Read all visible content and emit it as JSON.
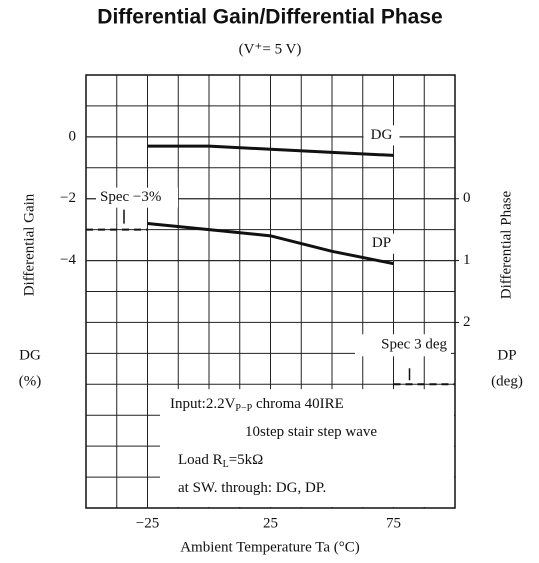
{
  "chart_data": {
    "type": "line",
    "title": "Differential Gain/Differential Phase",
    "subtitle": "(V⁺= 5 V)",
    "x_label": "Ambient Temperature Ta (°C)",
    "y_label": "Differential Gain",
    "y_unit_lines": [
      "DG",
      "(%)"
    ],
    "y2_label": "Differential Phase",
    "y2_unit_lines": [
      "DP",
      "(deg)"
    ],
    "x": [
      -25,
      0,
      25,
      50,
      75
    ],
    "xlim": [
      -50,
      100
    ],
    "xticks": [
      {
        "value": -25,
        "label": "−25"
      },
      25,
      75
    ],
    "ylim": [
      -12,
      2
    ],
    "yticks": [
      {
        "value": -4,
        "label": "−4"
      },
      {
        "value": -2,
        "label": "−2"
      },
      0
    ],
    "y2lim": [
      -2,
      5
    ],
    "y2_inverted": true,
    "y2ticks": [
      0,
      1,
      2
    ],
    "grid": true,
    "series": [
      {
        "name": "DG",
        "color": "#111",
        "values": [
          -0.3,
          -0.3,
          -0.4,
          -0.5,
          -0.6
        ]
      },
      {
        "name": "DP",
        "color": "#111",
        "axis": "y2",
        "values": [
          0.4,
          0.5,
          0.6,
          0.85,
          1.05
        ]
      }
    ],
    "spec_lines": [
      {
        "label": "Spec −3%",
        "value": -3,
        "axis": "y"
      },
      {
        "label": "Spec 3 deg",
        "value": 3,
        "axis": "y2"
      }
    ],
    "note": [
      [
        "Input:2.2V",
        "P−P",
        " chroma 40IRE"
      ],
      [
        "10step stair step wave"
      ],
      [
        "Load R",
        "L",
        "=5kΩ"
      ],
      [
        "at SW. through:   DG, DP."
      ]
    ]
  }
}
